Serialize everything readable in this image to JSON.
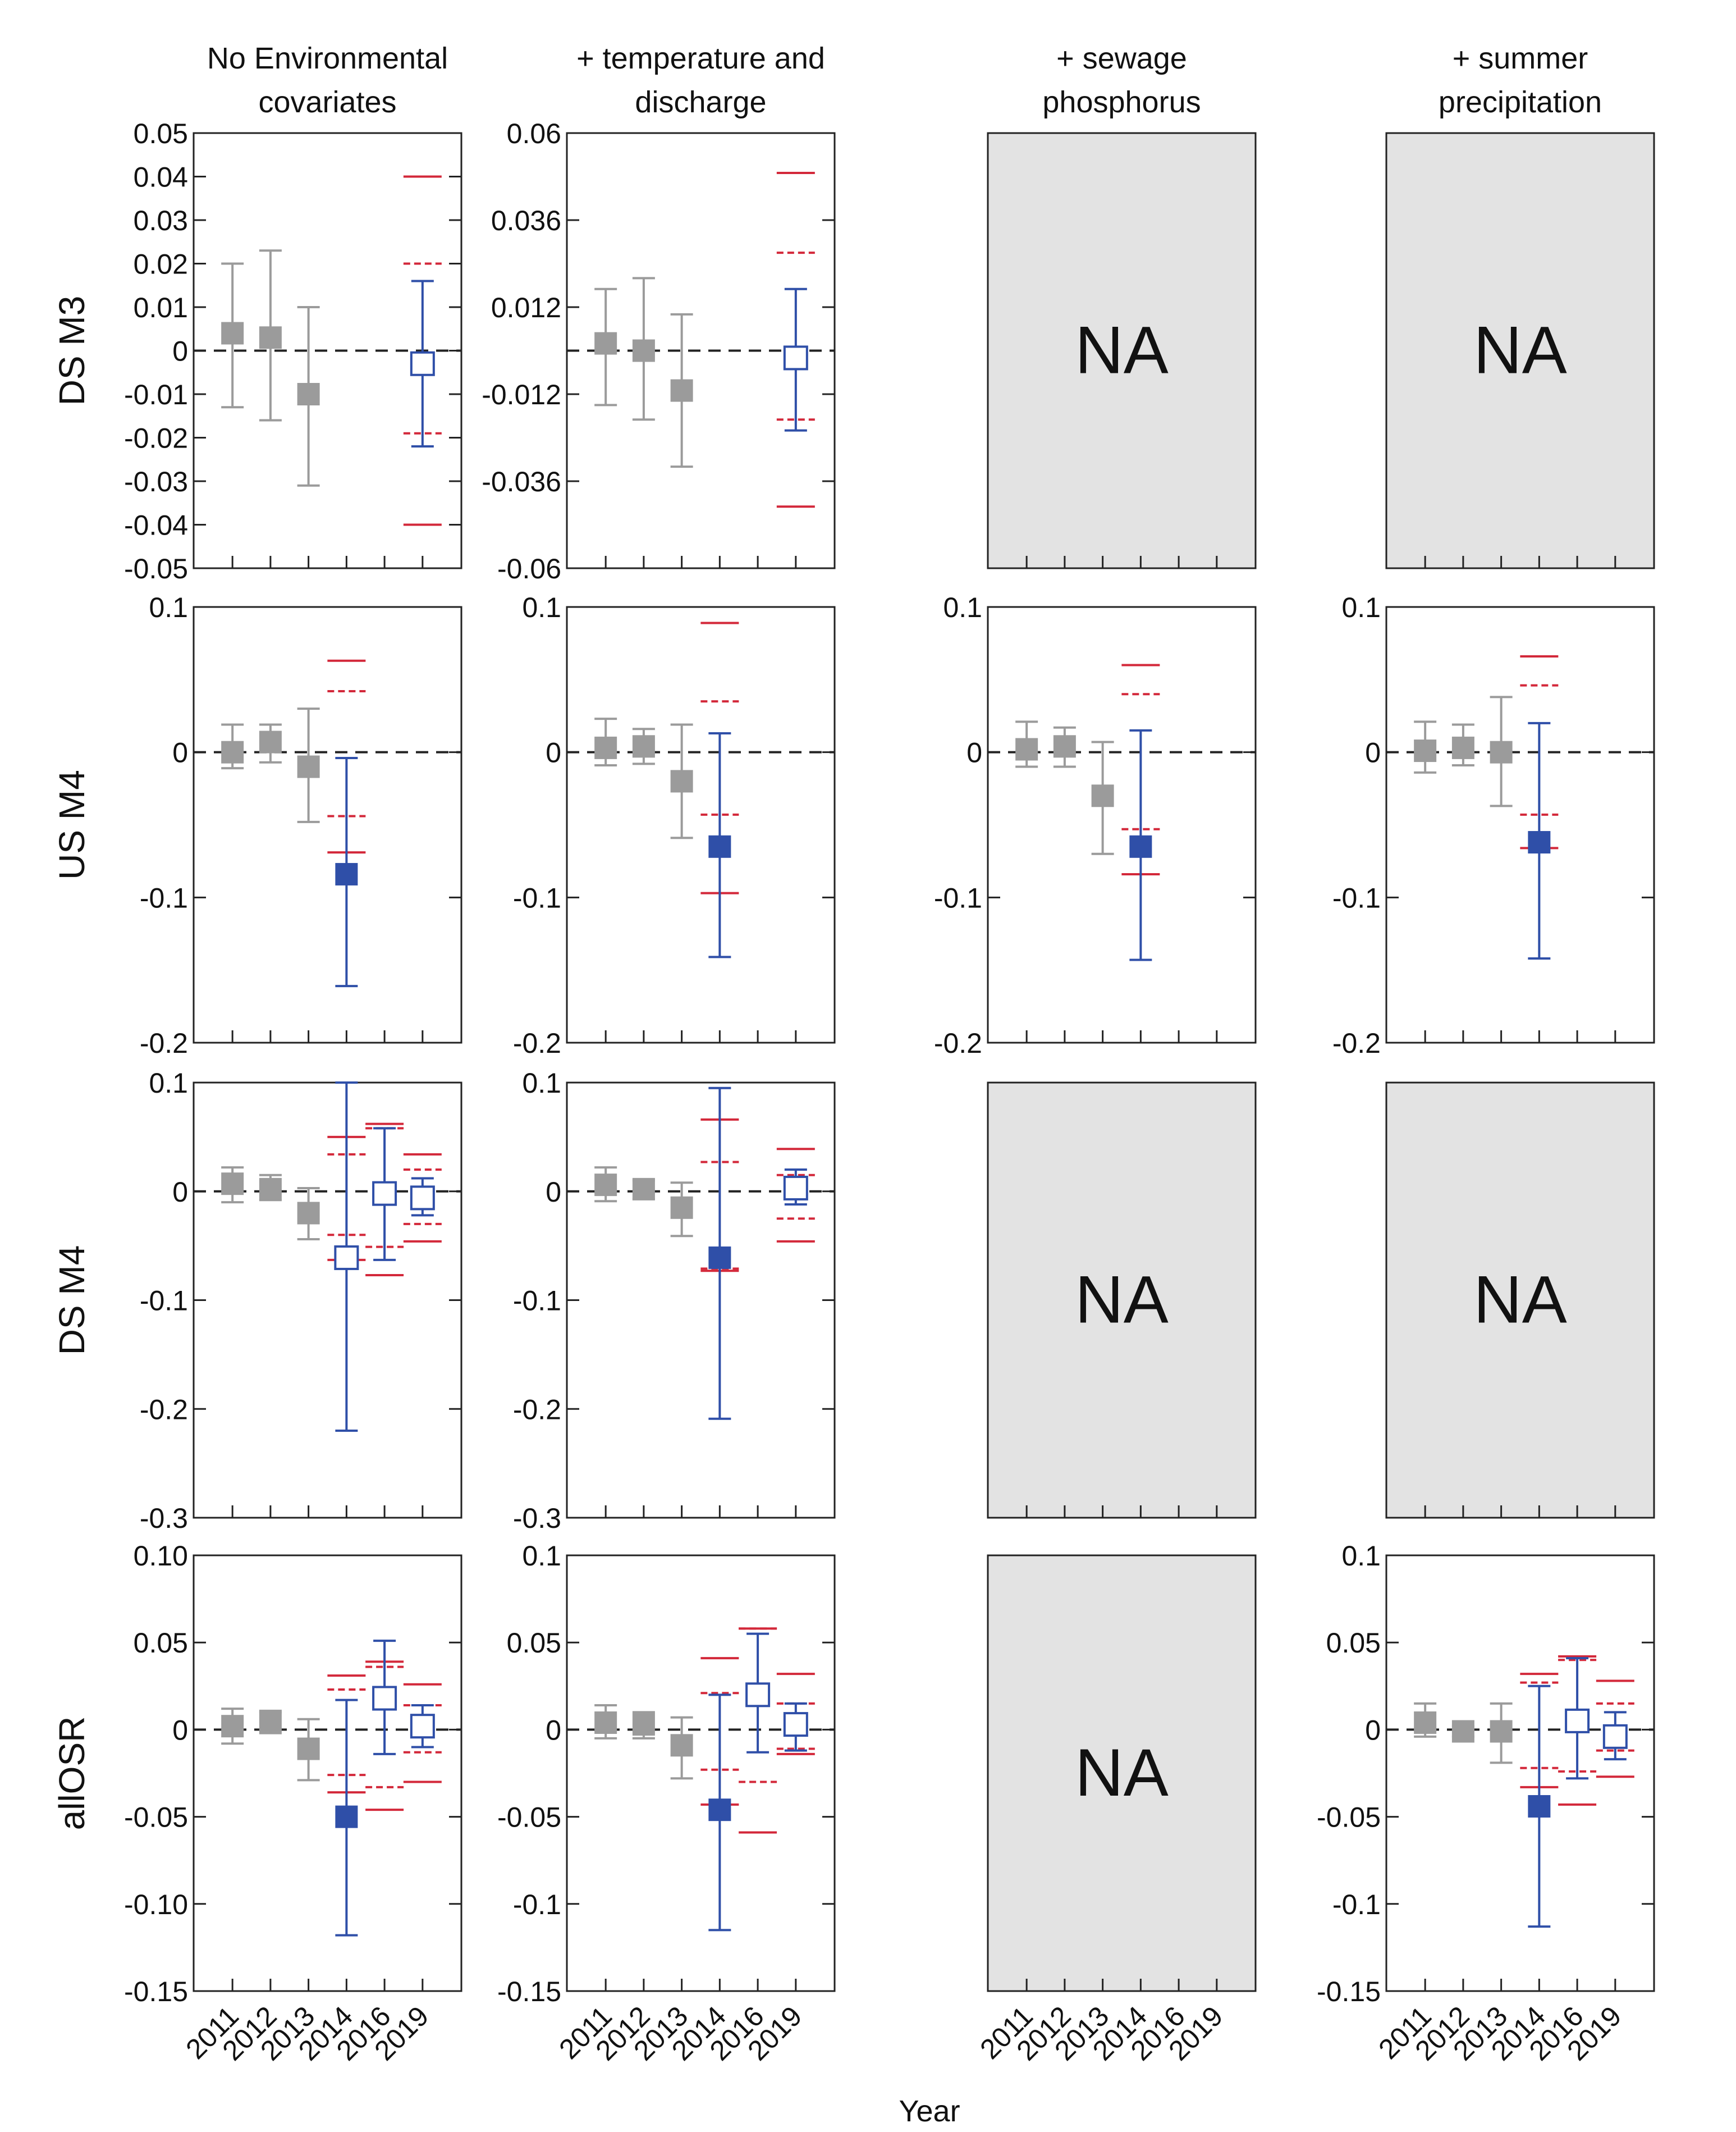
{
  "figure": {
    "xlabel": "Year",
    "na_label": "NA",
    "col_titles": [
      [
        "No Environmental",
        "covariates"
      ],
      [
        "+ temperature and",
        "discharge"
      ],
      [
        "+ sewage",
        "phosphorus"
      ],
      [
        "+ summer",
        "precipitation"
      ]
    ],
    "row_titles": [
      "DS M3",
      "US M4",
      "DS M4",
      "allOSR"
    ],
    "years": [
      "2011",
      "2012",
      "2013",
      "2014",
      "2016",
      "2019"
    ],
    "colors": {
      "grey": "#9b9b9b",
      "blue": "#2f4fa8",
      "red": "#d3283a",
      "na_fill": "#e3e3e3"
    }
  },
  "chart_data": [
    {
      "type": "scatter",
      "row": "DS M3",
      "col": "No Environmental covariates",
      "ylim": [
        -0.05,
        0.05
      ],
      "yticks": [
        "0.05",
        "0.04",
        "0.03",
        "0.02",
        "0.01",
        "0",
        "-0.01",
        "-0.02",
        "-0.03",
        "-0.04",
        "-0.05"
      ],
      "points": [
        {
          "year": "2011",
          "style": "grey",
          "value": 0.004,
          "lo": -0.013,
          "hi": 0.02
        },
        {
          "year": "2012",
          "style": "grey",
          "value": 0.003,
          "lo": -0.016,
          "hi": 0.023
        },
        {
          "year": "2013",
          "style": "grey",
          "value": -0.01,
          "lo": -0.031,
          "hi": 0.01
        },
        {
          "year": "2019",
          "style": "open",
          "value": -0.003,
          "lo": -0.022,
          "hi": 0.016,
          "solid": [
            0.04,
            -0.04
          ],
          "dashed": [
            0.02,
            -0.019
          ]
        }
      ]
    },
    {
      "type": "scatter",
      "row": "DS M3",
      "col": "+ temperature and discharge",
      "ylim": [
        -0.06,
        0.06
      ],
      "yticks": [
        "0.06",
        "0.036",
        "0.012",
        "-0.012",
        "-0.036",
        "-0.06"
      ],
      "points": [
        {
          "year": "2011",
          "style": "grey",
          "value": 0.002,
          "lo": -0.015,
          "hi": 0.017
        },
        {
          "year": "2012",
          "style": "grey",
          "value": 0.0,
          "lo": -0.019,
          "hi": 0.02
        },
        {
          "year": "2013",
          "style": "grey",
          "value": -0.011,
          "lo": -0.032,
          "hi": 0.01
        },
        {
          "year": "2019",
          "style": "open",
          "value": -0.002,
          "lo": -0.022,
          "hi": 0.017,
          "solid": [
            0.049,
            -0.043
          ],
          "dashed": [
            0.027,
            -0.019
          ]
        }
      ]
    },
    {
      "type": "scatter",
      "row": "DS M3",
      "col": "+ sewage phosphorus",
      "na": true,
      "ylim": [
        0,
        1
      ],
      "points": []
    },
    {
      "type": "scatter",
      "row": "DS M3",
      "col": "+ summer precipitation",
      "na": true,
      "ylim": [
        0,
        1
      ],
      "points": []
    },
    {
      "type": "scatter",
      "row": "US M4",
      "col": "No Environmental covariates",
      "ylim": [
        -0.2,
        0.1
      ],
      "yticks": [
        "0.1",
        "0",
        "-0.1",
        "-0.2"
      ],
      "points": [
        {
          "year": "2011",
          "style": "grey",
          "value": 0.0,
          "lo": -0.011,
          "hi": 0.019
        },
        {
          "year": "2012",
          "style": "grey",
          "value": 0.007,
          "lo": -0.007,
          "hi": 0.019
        },
        {
          "year": "2013",
          "style": "grey",
          "value": -0.01,
          "lo": -0.048,
          "hi": 0.03
        },
        {
          "year": "2014",
          "style": "blue",
          "value": -0.084,
          "lo": -0.161,
          "hi": -0.004,
          "solid": [
            0.063,
            -0.069
          ],
          "dashed": [
            0.042,
            -0.044
          ]
        }
      ]
    },
    {
      "type": "scatter",
      "row": "US M4",
      "col": "+ temperature and discharge",
      "ylim": [
        -0.2,
        0.1
      ],
      "yticks": [
        "0.1",
        "0",
        "-0.1",
        "-0.2"
      ],
      "points": [
        {
          "year": "2011",
          "style": "grey",
          "value": 0.003,
          "lo": -0.009,
          "hi": 0.023
        },
        {
          "year": "2012",
          "style": "grey",
          "value": 0.004,
          "lo": -0.008,
          "hi": 0.016
        },
        {
          "year": "2013",
          "style": "grey",
          "value": -0.02,
          "lo": -0.059,
          "hi": 0.019
        },
        {
          "year": "2014",
          "style": "blue",
          "value": -0.065,
          "lo": -0.141,
          "hi": 0.013,
          "solid": [
            0.089,
            -0.097
          ],
          "dashed": [
            0.035,
            -0.043
          ]
        }
      ]
    },
    {
      "type": "scatter",
      "row": "US M4",
      "col": "+ sewage phosphorus",
      "ylim": [
        -0.2,
        0.1
      ],
      "yticks": [
        "0.1",
        "0",
        "-0.1",
        "-0.2"
      ],
      "points": [
        {
          "year": "2011",
          "style": "grey",
          "value": 0.002,
          "lo": -0.01,
          "hi": 0.021
        },
        {
          "year": "2012",
          "style": "grey",
          "value": 0.004,
          "lo": -0.01,
          "hi": 0.017
        },
        {
          "year": "2013",
          "style": "grey",
          "value": -0.03,
          "lo": -0.07,
          "hi": 0.007
        },
        {
          "year": "2014",
          "style": "blue",
          "value": -0.065,
          "lo": -0.143,
          "hi": 0.015,
          "solid": [
            0.06,
            -0.084
          ],
          "dashed": [
            0.04,
            -0.053
          ]
        }
      ]
    },
    {
      "type": "scatter",
      "row": "US M4",
      "col": "+ summer precipitation",
      "ylim": [
        -0.2,
        0.1
      ],
      "yticks": [
        "0.1",
        "0",
        "-0.1",
        "-0.2"
      ],
      "points": [
        {
          "year": "2011",
          "style": "grey",
          "value": 0.001,
          "lo": -0.014,
          "hi": 0.021
        },
        {
          "year": "2012",
          "style": "grey",
          "value": 0.003,
          "lo": -0.009,
          "hi": 0.019
        },
        {
          "year": "2013",
          "style": "grey",
          "value": 0.0,
          "lo": -0.037,
          "hi": 0.038
        },
        {
          "year": "2014",
          "style": "blue",
          "value": -0.062,
          "lo": -0.142,
          "hi": 0.02,
          "solid": [
            0.066,
            -0.066
          ],
          "dashed": [
            0.046,
            -0.043
          ]
        }
      ]
    },
    {
      "type": "scatter",
      "row": "DS M4",
      "col": "No Environmental covariates",
      "ylim": [
        -0.3,
        0.1
      ],
      "yticks": [
        "0.1",
        "0",
        "-0.1",
        "-0.2",
        "-0.3"
      ],
      "points": [
        {
          "year": "2011",
          "style": "grey",
          "value": 0.007,
          "lo": -0.01,
          "hi": 0.022
        },
        {
          "year": "2012",
          "style": "grey",
          "value": 0.002,
          "lo": -0.008,
          "hi": 0.015
        },
        {
          "year": "2013",
          "style": "grey",
          "value": -0.02,
          "lo": -0.044,
          "hi": 0.003
        },
        {
          "year": "2014",
          "style": "open",
          "value": -0.061,
          "lo": -0.22,
          "hi": 0.1,
          "solid": [
            0.05,
            -0.063
          ],
          "dashed": [
            0.034,
            -0.04
          ]
        },
        {
          "year": "2016",
          "style": "open",
          "value": -0.002,
          "lo": -0.063,
          "hi": 0.058,
          "solid": [
            0.062,
            -0.077
          ],
          "dashed": [
            0.058,
            -0.051
          ]
        },
        {
          "year": "2019",
          "style": "open",
          "value": -0.006,
          "lo": -0.022,
          "hi": 0.012,
          "solid": [
            0.034,
            -0.046
          ],
          "dashed": [
            0.02,
            -0.03
          ]
        }
      ]
    },
    {
      "type": "scatter",
      "row": "DS M4",
      "col": "+ temperature and discharge",
      "ylim": [
        -0.3,
        0.1
      ],
      "yticks": [
        "0.1",
        "0",
        "-0.1",
        "-0.2",
        "-0.3"
      ],
      "points": [
        {
          "year": "2011",
          "style": "grey",
          "value": 0.006,
          "lo": -0.009,
          "hi": 0.022
        },
        {
          "year": "2012",
          "style": "grey",
          "value": 0.002,
          "lo": -0.007,
          "hi": 0.01
        },
        {
          "year": "2013",
          "style": "grey",
          "value": -0.015,
          "lo": -0.041,
          "hi": 0.008
        },
        {
          "year": "2014",
          "style": "blue",
          "value": -0.061,
          "lo": -0.209,
          "hi": 0.095,
          "solid": [
            0.066,
            -0.073
          ],
          "dashed": [
            0.027,
            -0.071
          ]
        },
        {
          "year": "2019",
          "style": "open",
          "value": 0.003,
          "lo": -0.012,
          "hi": 0.02,
          "solid": [
            0.039,
            -0.046
          ],
          "dashed": [
            0.015,
            -0.025
          ]
        }
      ]
    },
    {
      "type": "scatter",
      "row": "DS M4",
      "col": "+ sewage phosphorus",
      "na": true,
      "ylim": [
        0,
        1
      ],
      "points": []
    },
    {
      "type": "scatter",
      "row": "DS M4",
      "col": "+ summer precipitation",
      "na": true,
      "ylim": [
        0,
        1
      ],
      "points": []
    },
    {
      "type": "scatter",
      "row": "allOSR",
      "col": "No Environmental covariates",
      "ylim": [
        -0.15,
        0.1
      ],
      "yticks": [
        "0.10",
        "0.05",
        "0",
        "-0.05",
        "-0.10",
        "-0.15"
      ],
      "points": [
        {
          "year": "2011",
          "style": "grey",
          "value": 0.002,
          "lo": -0.008,
          "hi": 0.012
        },
        {
          "year": "2012",
          "style": "grey",
          "value": 0.005,
          "lo": -0.002,
          "hi": 0.01
        },
        {
          "year": "2013",
          "style": "grey",
          "value": -0.011,
          "lo": -0.029,
          "hi": 0.006
        },
        {
          "year": "2014",
          "style": "blue",
          "value": -0.05,
          "lo": -0.118,
          "hi": 0.017,
          "solid": [
            0.031,
            -0.036
          ],
          "dashed": [
            0.023,
            -0.026
          ]
        },
        {
          "year": "2016",
          "style": "open",
          "value": 0.018,
          "lo": -0.014,
          "hi": 0.051,
          "solid": [
            0.039,
            -0.046
          ],
          "dashed": [
            0.036,
            -0.033
          ]
        },
        {
          "year": "2019",
          "style": "open",
          "value": 0.002,
          "lo": -0.01,
          "hi": 0.014,
          "solid": [
            0.026,
            -0.03
          ],
          "dashed": [
            0.014,
            -0.013
          ]
        }
      ]
    },
    {
      "type": "scatter",
      "row": "allOSR",
      "col": "+ temperature and discharge",
      "ylim": [
        -0.15,
        0.1
      ],
      "yticks": [
        "0.1",
        "0.05",
        "0",
        "-0.05",
        "-0.1",
        "-0.15"
      ],
      "points": [
        {
          "year": "2011",
          "style": "grey",
          "value": 0.004,
          "lo": -0.005,
          "hi": 0.014
        },
        {
          "year": "2012",
          "style": "grey",
          "value": 0.003,
          "lo": -0.005,
          "hi": 0.01
        },
        {
          "year": "2013",
          "style": "grey",
          "value": -0.009,
          "lo": -0.028,
          "hi": 0.007
        },
        {
          "year": "2014",
          "style": "blue",
          "value": -0.046,
          "lo": -0.115,
          "hi": 0.02,
          "solid": [
            0.041,
            -0.043
          ],
          "dashed": [
            0.021,
            -0.023
          ]
        },
        {
          "year": "2016",
          "style": "open",
          "value": 0.02,
          "lo": -0.013,
          "hi": 0.055,
          "solid": [
            0.058,
            -0.059
          ],
          "dashed": [
            0.058,
            -0.03
          ]
        },
        {
          "year": "2019",
          "style": "open",
          "value": 0.003,
          "lo": -0.012,
          "hi": 0.015,
          "solid": [
            0.032,
            -0.014
          ],
          "dashed": [
            0.015,
            -0.011
          ]
        }
      ]
    },
    {
      "type": "scatter",
      "row": "allOSR",
      "col": "+ sewage phosphorus",
      "na": true,
      "ylim": [
        0,
        1
      ],
      "points": []
    },
    {
      "type": "scatter",
      "row": "allOSR",
      "col": "+ summer precipitation",
      "ylim": [
        -0.15,
        0.1
      ],
      "yticks": [
        "0.1",
        "0.05",
        "0",
        "-0.05",
        "-0.1",
        "-0.15"
      ],
      "points": [
        {
          "year": "2011",
          "style": "grey",
          "value": 0.004,
          "lo": -0.004,
          "hi": 0.015
        },
        {
          "year": "2012",
          "style": "grey",
          "value": -0.001,
          "lo": -0.004,
          "hi": 0.002
        },
        {
          "year": "2013",
          "style": "grey",
          "value": -0.001,
          "lo": -0.019,
          "hi": 0.015
        },
        {
          "year": "2014",
          "style": "blue",
          "value": -0.044,
          "lo": -0.113,
          "hi": 0.025,
          "solid": [
            0.032,
            -0.033
          ],
          "dashed": [
            0.027,
            -0.022
          ]
        },
        {
          "year": "2016",
          "style": "open",
          "value": 0.005,
          "lo": -0.028,
          "hi": 0.041,
          "solid": [
            0.042,
            -0.043
          ],
          "dashed": [
            0.04,
            -0.024
          ]
        },
        {
          "year": "2019",
          "style": "open",
          "value": -0.004,
          "lo": -0.017,
          "hi": 0.01,
          "solid": [
            0.028,
            -0.027
          ],
          "dashed": [
            0.015,
            -0.012
          ]
        }
      ]
    }
  ]
}
